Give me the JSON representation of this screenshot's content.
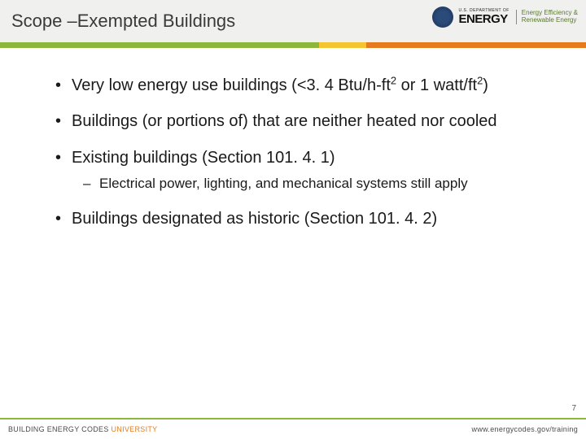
{
  "header": {
    "title": "Scope –Exempted Buildings",
    "logo": {
      "dept_small": "U.S. DEPARTMENT OF",
      "dept_big": "ENERGY",
      "eere_line1": "Energy Efficiency &",
      "eere_line2": "Renewable Energy"
    }
  },
  "accent_colors": {
    "green": "#8cb63c",
    "yellow": "#f5c431",
    "orange": "#e67b1e"
  },
  "bullets": [
    {
      "pre": "Very low energy use buildings (<3. 4 Btu/h-ft",
      "sup1": "2",
      "mid": " or 1 watt/ft",
      "sup2": "2",
      "post": ")"
    },
    {
      "text": "Buildings (or portions of) that are neither heated nor  cooled"
    },
    {
      "text": "Existing buildings (Section 101. 4. 1)",
      "sub": [
        {
          "text": "Electrical power, lighting, and mechanical systems still apply"
        }
      ]
    },
    {
      "text": "Buildings designated as historic (Section 101. 4. 2)"
    }
  ],
  "footer": {
    "left_a": "BUILDING ENERGY CODES ",
    "left_b": "UNIVERSITY",
    "right": "www.energycodes.gov/training",
    "page": "7"
  }
}
